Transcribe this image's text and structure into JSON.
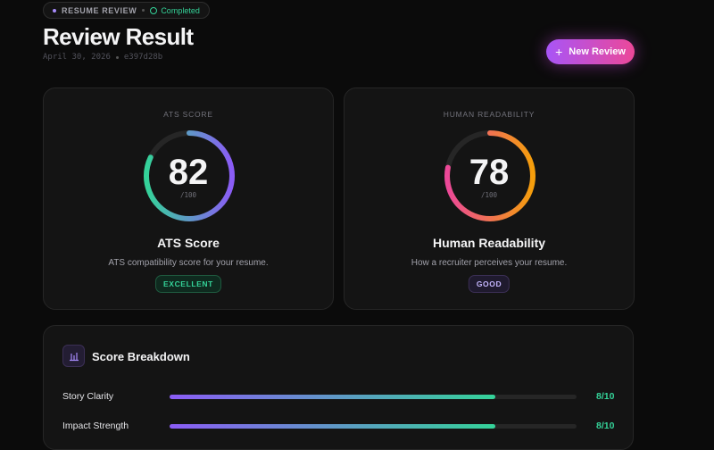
{
  "header": {
    "badge": "RESUME REVIEW",
    "status": "Completed",
    "title": "Review Result",
    "date": "April 30, 2026",
    "id": "e397d28b",
    "button": "New Review"
  },
  "scores": [
    {
      "label": "ATS SCORE",
      "value": 82,
      "max": {
        "value": 100,
        "label": "/100"
      },
      "name": "ATS Score",
      "description": "ATS compatibility score for your resume.",
      "rating": "EXCELLENT"
    },
    {
      "label": "HUMAN READABILITY",
      "value": 78,
      "max": {
        "value": 100,
        "label": "/100"
      },
      "name": "Human Readability",
      "description": "How a recruiter perceives your resume.",
      "rating": "GOOD"
    }
  ],
  "breakdown": {
    "title": "Score Breakdown",
    "items": [
      {
        "name": "Story Clarity",
        "value": 8,
        "max": 10,
        "label": "8/10"
      },
      {
        "name": "Impact Strength",
        "value": 8,
        "max": 10,
        "label": "8/10"
      }
    ]
  }
}
